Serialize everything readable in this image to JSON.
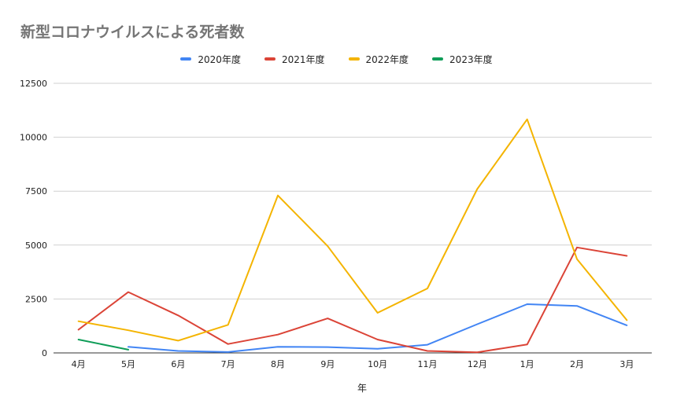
{
  "chart_data": {
    "type": "line",
    "title": "新型コロナウイルスによる死者数",
    "xlabel": "年",
    "ylabel": "",
    "categories": [
      "4月",
      "5月",
      "6月",
      "7月",
      "8月",
      "9月",
      "10月",
      "11月",
      "12月",
      "1月",
      "2月",
      "3月"
    ],
    "ylim": [
      0,
      12500
    ],
    "yticks": [
      "0",
      "2500",
      "5000",
      "7500",
      "10000",
      "12500"
    ],
    "ytick_values": [
      0,
      2500,
      5000,
      7500,
      10000,
      12500
    ],
    "grid": true,
    "legend_position": "top",
    "series": [
      {
        "name": "2020年度",
        "color": "#4285f4",
        "values": [
          null,
          280,
          90,
          40,
          280,
          270,
          190,
          380,
          1330,
          2260,
          2180,
          1280
        ]
      },
      {
        "name": "2021年度",
        "color": "#db4437",
        "values": [
          1080,
          2820,
          1740,
          410,
          850,
          1600,
          620,
          90,
          30,
          390,
          4890,
          4500
        ]
      },
      {
        "name": "2022年度",
        "color": "#f4b400",
        "values": [
          1470,
          1050,
          570,
          1300,
          7300,
          4950,
          1860,
          2990,
          7600,
          10830,
          4350,
          1520
        ]
      },
      {
        "name": "2023年度",
        "color": "#0f9d58",
        "values": [
          620,
          150,
          null,
          null,
          null,
          null,
          null,
          null,
          null,
          null,
          null,
          null
        ]
      }
    ]
  }
}
